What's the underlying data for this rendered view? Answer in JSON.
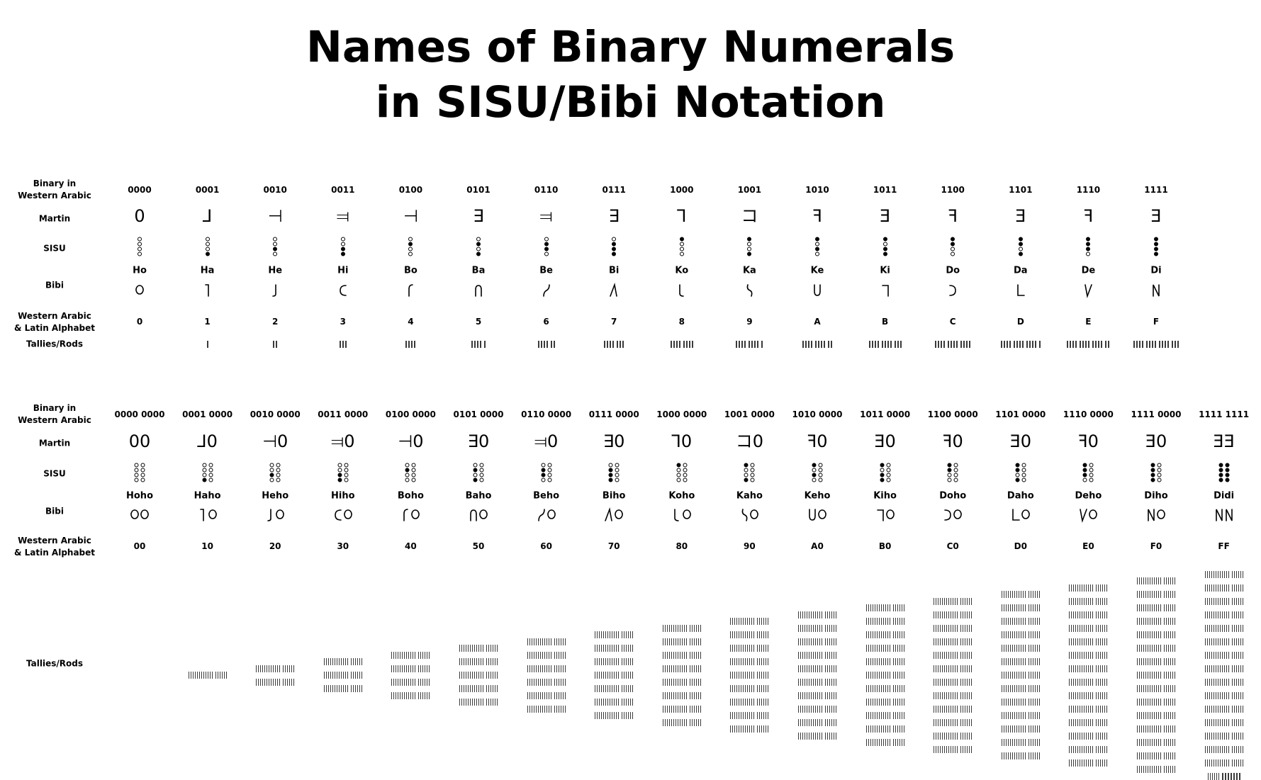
{
  "title": {
    "line1": "Names of Binary Numerals",
    "line2": "in SISU/Bibi Notation"
  },
  "labels": {
    "binary": "Binary in\nWestern Arabic",
    "martin": "Martin",
    "sisu": "SISU",
    "bibi": "Bibi",
    "western": "Western Arabic\n& Latin Alphabet",
    "tallies": "Tallies/Rods"
  },
  "table1": [
    {
      "binary": "0000",
      "martin": "0",
      "bibi_name": "Ho",
      "western": "0",
      "tally": 0
    },
    {
      "binary": "0001",
      "martin": "⅃",
      "bibi_name": "Ha",
      "western": "1",
      "tally": 1
    },
    {
      "binary": "0010",
      "martin": "⊣",
      "bibi_name": "He",
      "western": "2",
      "tally": 2
    },
    {
      "binary": "0011",
      "martin": "⫤",
      "bibi_name": "Hi",
      "western": "3",
      "tally": 3
    },
    {
      "binary": "0100",
      "martin": "⊣",
      "bibi_name": "Bo",
      "western": "4",
      "tally": 4
    },
    {
      "binary": "0101",
      "martin": "∃",
      "bibi_name": "Ba",
      "western": "5",
      "tally": 5
    },
    {
      "binary": "0110",
      "martin": "⫤",
      "bibi_name": "Be",
      "western": "6",
      "tally": 6
    },
    {
      "binary": "0111",
      "martin": "∃",
      "bibi_name": "Bi",
      "western": "7",
      "tally": 7
    },
    {
      "binary": "1000",
      "martin": "ꓶ",
      "bibi_name": "Ko",
      "western": "8",
      "tally": 8
    },
    {
      "binary": "1001",
      "martin": "コ",
      "bibi_name": "Ka",
      "western": "9",
      "tally": 9
    },
    {
      "binary": "1010",
      "martin": "ꟻ",
      "bibi_name": "Ke",
      "western": "A",
      "tally": 10
    },
    {
      "binary": "1011",
      "martin": "Ǝ",
      "bibi_name": "Ki",
      "western": "B",
      "tally": 11
    },
    {
      "binary": "1100",
      "martin": "ꟻ",
      "bibi_name": "Do",
      "western": "C",
      "tally": 12
    },
    {
      "binary": "1101",
      "martin": "Ǝ",
      "bibi_name": "Da",
      "western": "D",
      "tally": 13
    },
    {
      "binary": "1110",
      "martin": "ꟻ",
      "bibi_name": "De",
      "western": "E",
      "tally": 14
    },
    {
      "binary": "1111",
      "martin": "Ǝ",
      "bibi_name": "Di",
      "western": "F",
      "tally": 15
    }
  ],
  "table2": [
    {
      "binary": "0000 0000",
      "martin": "00",
      "bibi_name": "Hoho",
      "western": "00",
      "tally": 0
    },
    {
      "binary": "0001 0000",
      "martin": "⅃0",
      "bibi_name": "Haho",
      "western": "10",
      "tally": 16
    },
    {
      "binary": "0010 0000",
      "martin": "⊣0",
      "bibi_name": "Heho",
      "western": "20",
      "tally": 32
    },
    {
      "binary": "0011 0000",
      "martin": "⫤0",
      "bibi_name": "Hiho",
      "western": "30",
      "tally": 48
    },
    {
      "binary": "0100 0000",
      "martin": "⊣0",
      "bibi_name": "Boho",
      "western": "40",
      "tally": 64
    },
    {
      "binary": "0101 0000",
      "martin": "∃0",
      "bibi_name": "Baho",
      "western": "50",
      "tally": 80
    },
    {
      "binary": "0110 0000",
      "martin": "⫤0",
      "bibi_name": "Beho",
      "western": "60",
      "tally": 96
    },
    {
      "binary": "0111 0000",
      "martin": "∃0",
      "bibi_name": "Biho",
      "western": "70",
      "tally": 112
    },
    {
      "binary": "1000 0000",
      "martin": "ꓶ0",
      "bibi_name": "Koho",
      "western": "80",
      "tally": 128
    },
    {
      "binary": "1001 0000",
      "martin": "コ0",
      "bibi_name": "Kaho",
      "western": "90",
      "tally": 144
    },
    {
      "binary": "1010 0000",
      "martin": "ꟻ0",
      "bibi_name": "Keho",
      "western": "A0",
      "tally": 160
    },
    {
      "binary": "1011 0000",
      "martin": "Ǝ0",
      "bibi_name": "Kiho",
      "western": "B0",
      "tally": 176
    },
    {
      "binary": "1100 0000",
      "martin": "ꟻ0",
      "bibi_name": "Doho",
      "western": "C0",
      "tally": 192
    },
    {
      "binary": "1101 0000",
      "martin": "Ǝ0",
      "bibi_name": "Daho",
      "western": "D0",
      "tally": 208
    },
    {
      "binary": "1110 0000",
      "martin": "ꟻ0",
      "bibi_name": "Deho",
      "western": "E0",
      "tally": 224
    },
    {
      "binary": "1111 0000",
      "martin": "Ǝ0",
      "bibi_name": "Diho",
      "western": "F0",
      "tally": 240
    },
    {
      "binary": "1111 1111",
      "martin": "ƎƎ",
      "bibi_name": "Didi",
      "western": "FF",
      "tally": 255
    }
  ]
}
